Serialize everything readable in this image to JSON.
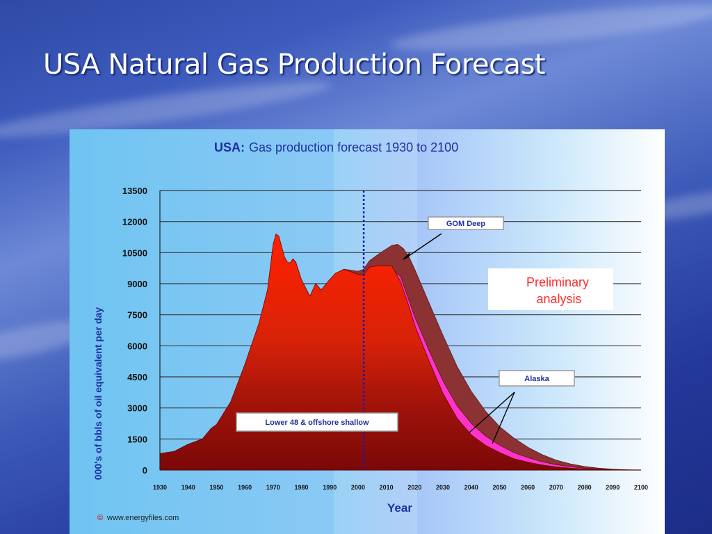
{
  "slide": {
    "title": "USA Natural Gas Production Forecast"
  },
  "chart_data": {
    "type": "area",
    "title_bold": "USA:",
    "title": "Gas production forecast 1930 to 2100",
    "xlabel": "Year",
    "ylabel": "000's of bbls of oil equivalent per day",
    "xlim": [
      1930,
      2100
    ],
    "ylim": [
      0,
      13500
    ],
    "y_ticks": [
      "0",
      "1500",
      "3000",
      "4500",
      "6000",
      "7500",
      "9000",
      "10500",
      "12000",
      "13500"
    ],
    "x_ticks": [
      "1930",
      "1940",
      "1950",
      "1960",
      "1970",
      "1980",
      "1990",
      "2000",
      "2010",
      "2020",
      "2030",
      "2040",
      "2050",
      "2060",
      "2070",
      "2080",
      "2090",
      "2100"
    ],
    "grid": "horizontal",
    "reference_line_year": 2002,
    "series": [
      {
        "name": "Lower 48 & offshore shallow",
        "color": "#b01a0a",
        "points": [
          [
            1930,
            800
          ],
          [
            1935,
            900
          ],
          [
            1940,
            1250
          ],
          [
            1945,
            1500
          ],
          [
            1948,
            2000
          ],
          [
            1950,
            2200
          ],
          [
            1955,
            3300
          ],
          [
            1960,
            5100
          ],
          [
            1965,
            7100
          ],
          [
            1968,
            8700
          ],
          [
            1970,
            10900
          ],
          [
            1971,
            11400
          ],
          [
            1972,
            11300
          ],
          [
            1973,
            10800
          ],
          [
            1974,
            10300
          ],
          [
            1975,
            10050
          ],
          [
            1976,
            10000
          ],
          [
            1977,
            10200
          ],
          [
            1978,
            10050
          ],
          [
            1980,
            9200
          ],
          [
            1983,
            8400
          ],
          [
            1985,
            9000
          ],
          [
            1987,
            8700
          ],
          [
            1990,
            9200
          ],
          [
            1992,
            9500
          ],
          [
            1995,
            9700
          ],
          [
            1997,
            9600
          ],
          [
            2000,
            9450
          ],
          [
            2002,
            9450
          ],
          [
            2004,
            9800
          ],
          [
            2008,
            9900
          ],
          [
            2012,
            9850
          ],
          [
            2015,
            9100
          ],
          [
            2018,
            7900
          ],
          [
            2020,
            7000
          ],
          [
            2025,
            5300
          ],
          [
            2030,
            3700
          ],
          [
            2035,
            2500
          ],
          [
            2040,
            1700
          ],
          [
            2045,
            1200
          ],
          [
            2050,
            850
          ],
          [
            2055,
            550
          ],
          [
            2060,
            380
          ],
          [
            2065,
            250
          ],
          [
            2070,
            150
          ],
          [
            2075,
            90
          ],
          [
            2080,
            50
          ],
          [
            2085,
            25
          ],
          [
            2090,
            10
          ],
          [
            2100,
            0
          ]
        ]
      },
      {
        "name": "Alaska",
        "color": "#ff33cc",
        "points": [
          [
            2010,
            9900
          ],
          [
            2015,
            9350
          ],
          [
            2020,
            7400
          ],
          [
            2025,
            5800
          ],
          [
            2030,
            4300
          ],
          [
            2035,
            3100
          ],
          [
            2040,
            2250
          ],
          [
            2045,
            1650
          ],
          [
            2050,
            1200
          ],
          [
            2055,
            850
          ],
          [
            2060,
            600
          ],
          [
            2065,
            400
          ],
          [
            2070,
            260
          ],
          [
            2075,
            160
          ],
          [
            2080,
            90
          ],
          [
            2085,
            45
          ],
          [
            2090,
            15
          ],
          [
            2100,
            0
          ]
        ]
      },
      {
        "name": "GOM Deep",
        "color": "#8c3232",
        "points": [
          [
            1995,
            9700
          ],
          [
            2000,
            9600
          ],
          [
            2002,
            9700
          ],
          [
            2004,
            10100
          ],
          [
            2008,
            10500
          ],
          [
            2012,
            10850
          ],
          [
            2014,
            10900
          ],
          [
            2016,
            10700
          ],
          [
            2018,
            10300
          ],
          [
            2020,
            9700
          ],
          [
            2025,
            8100
          ],
          [
            2030,
            6500
          ],
          [
            2035,
            5000
          ],
          [
            2040,
            3800
          ],
          [
            2045,
            2850
          ],
          [
            2050,
            2100
          ],
          [
            2055,
            1550
          ],
          [
            2060,
            1100
          ],
          [
            2065,
            750
          ],
          [
            2070,
            480
          ],
          [
            2075,
            300
          ],
          [
            2080,
            170
          ],
          [
            2085,
            90
          ],
          [
            2090,
            40
          ],
          [
            2095,
            15
          ],
          [
            2100,
            0
          ]
        ]
      }
    ],
    "annotations": {
      "gom_deep_label": "GOM Deep",
      "alaska_label": "Alaska",
      "lower48_label": "Lower 48 & offshore shallow",
      "preliminary_line1": "Preliminary",
      "preliminary_line2": "analysis",
      "source": "www.energyfiles.com"
    },
    "colors": {
      "title_blue": "#1f2fa0",
      "preliminary_red": "#ff2a2a",
      "reference_line": "#1a1aa8",
      "grid": "#3a3a3a"
    }
  }
}
